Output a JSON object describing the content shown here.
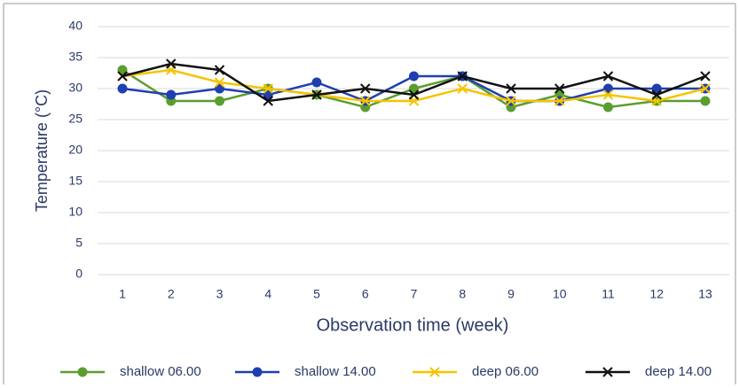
{
  "chart_data": {
    "type": "line",
    "x_label": "Observation time (week)",
    "y_label": "Temperature (°C)",
    "categories": [
      "1",
      "2",
      "3",
      "4",
      "5",
      "6",
      "7",
      "8",
      "9",
      "10",
      "11",
      "12",
      "13"
    ],
    "series": [
      {
        "name": "shallow 06.00",
        "color": "#5a9e2f",
        "marker": "circle",
        "values": [
          33,
          28,
          28,
          30,
          29,
          27,
          30,
          32,
          27,
          29,
          27,
          28,
          28
        ]
      },
      {
        "name": "shallow 14.00",
        "color": "#1f3fb0",
        "marker": "circle",
        "values": [
          30,
          29,
          30,
          29,
          31,
          28,
          32,
          32,
          28,
          28,
          30,
          30,
          30
        ]
      },
      {
        "name": "deep 06.00",
        "color": "#f5c400",
        "marker": "x",
        "values": [
          32,
          33,
          31,
          30,
          29,
          28,
          28,
          30,
          28,
          28,
          29,
          28,
          30
        ]
      },
      {
        "name": "deep 14.00",
        "color": "#111111",
        "marker": "x",
        "values": [
          32,
          34,
          33,
          28,
          29,
          30,
          29,
          32,
          30,
          30,
          32,
          29,
          32
        ]
      }
    ],
    "ylim": [
      0,
      40
    ],
    "yticks": [
      0,
      5,
      10,
      15,
      20,
      25,
      30,
      35,
      40
    ],
    "grid": true,
    "legend": "bottom"
  }
}
